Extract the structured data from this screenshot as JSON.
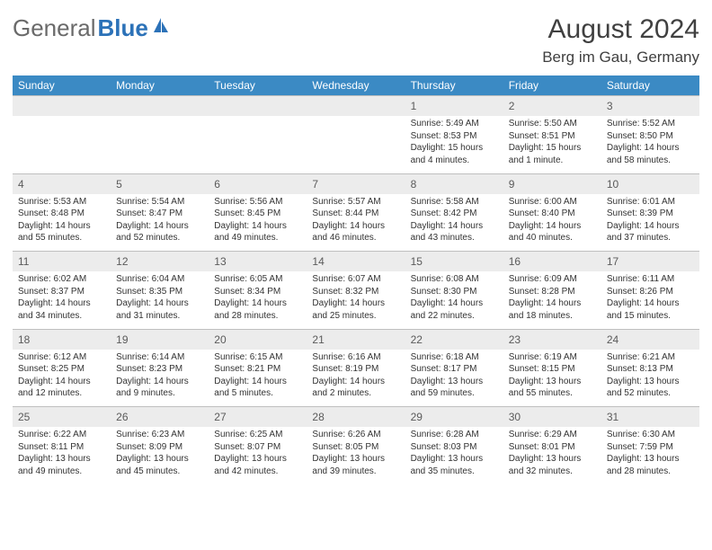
{
  "brand": {
    "part1": "General",
    "part2": "Blue"
  },
  "title": "August 2024",
  "location": "Berg im Gau, Germany",
  "colors": {
    "header_bg": "#3b8ac4",
    "header_fg": "#ffffff",
    "daynum_bg": "#ececec",
    "daynum_border": "#bfbfbf",
    "text": "#333333",
    "brand_gray": "#6a6a6a",
    "brand_blue": "#2c72b8"
  },
  "weekdays": [
    "Sunday",
    "Monday",
    "Tuesday",
    "Wednesday",
    "Thursday",
    "Friday",
    "Saturday"
  ],
  "weeks": [
    [
      {
        "n": "",
        "sun": "",
        "set": "",
        "day": ""
      },
      {
        "n": "",
        "sun": "",
        "set": "",
        "day": ""
      },
      {
        "n": "",
        "sun": "",
        "set": "",
        "day": ""
      },
      {
        "n": "",
        "sun": "",
        "set": "",
        "day": ""
      },
      {
        "n": "1",
        "sun": "Sunrise: 5:49 AM",
        "set": "Sunset: 8:53 PM",
        "day": "Daylight: 15 hours and 4 minutes."
      },
      {
        "n": "2",
        "sun": "Sunrise: 5:50 AM",
        "set": "Sunset: 8:51 PM",
        "day": "Daylight: 15 hours and 1 minute."
      },
      {
        "n": "3",
        "sun": "Sunrise: 5:52 AM",
        "set": "Sunset: 8:50 PM",
        "day": "Daylight: 14 hours and 58 minutes."
      }
    ],
    [
      {
        "n": "4",
        "sun": "Sunrise: 5:53 AM",
        "set": "Sunset: 8:48 PM",
        "day": "Daylight: 14 hours and 55 minutes."
      },
      {
        "n": "5",
        "sun": "Sunrise: 5:54 AM",
        "set": "Sunset: 8:47 PM",
        "day": "Daylight: 14 hours and 52 minutes."
      },
      {
        "n": "6",
        "sun": "Sunrise: 5:56 AM",
        "set": "Sunset: 8:45 PM",
        "day": "Daylight: 14 hours and 49 minutes."
      },
      {
        "n": "7",
        "sun": "Sunrise: 5:57 AM",
        "set": "Sunset: 8:44 PM",
        "day": "Daylight: 14 hours and 46 minutes."
      },
      {
        "n": "8",
        "sun": "Sunrise: 5:58 AM",
        "set": "Sunset: 8:42 PM",
        "day": "Daylight: 14 hours and 43 minutes."
      },
      {
        "n": "9",
        "sun": "Sunrise: 6:00 AM",
        "set": "Sunset: 8:40 PM",
        "day": "Daylight: 14 hours and 40 minutes."
      },
      {
        "n": "10",
        "sun": "Sunrise: 6:01 AM",
        "set": "Sunset: 8:39 PM",
        "day": "Daylight: 14 hours and 37 minutes."
      }
    ],
    [
      {
        "n": "11",
        "sun": "Sunrise: 6:02 AM",
        "set": "Sunset: 8:37 PM",
        "day": "Daylight: 14 hours and 34 minutes."
      },
      {
        "n": "12",
        "sun": "Sunrise: 6:04 AM",
        "set": "Sunset: 8:35 PM",
        "day": "Daylight: 14 hours and 31 minutes."
      },
      {
        "n": "13",
        "sun": "Sunrise: 6:05 AM",
        "set": "Sunset: 8:34 PM",
        "day": "Daylight: 14 hours and 28 minutes."
      },
      {
        "n": "14",
        "sun": "Sunrise: 6:07 AM",
        "set": "Sunset: 8:32 PM",
        "day": "Daylight: 14 hours and 25 minutes."
      },
      {
        "n": "15",
        "sun": "Sunrise: 6:08 AM",
        "set": "Sunset: 8:30 PM",
        "day": "Daylight: 14 hours and 22 minutes."
      },
      {
        "n": "16",
        "sun": "Sunrise: 6:09 AM",
        "set": "Sunset: 8:28 PM",
        "day": "Daylight: 14 hours and 18 minutes."
      },
      {
        "n": "17",
        "sun": "Sunrise: 6:11 AM",
        "set": "Sunset: 8:26 PM",
        "day": "Daylight: 14 hours and 15 minutes."
      }
    ],
    [
      {
        "n": "18",
        "sun": "Sunrise: 6:12 AM",
        "set": "Sunset: 8:25 PM",
        "day": "Daylight: 14 hours and 12 minutes."
      },
      {
        "n": "19",
        "sun": "Sunrise: 6:14 AM",
        "set": "Sunset: 8:23 PM",
        "day": "Daylight: 14 hours and 9 minutes."
      },
      {
        "n": "20",
        "sun": "Sunrise: 6:15 AM",
        "set": "Sunset: 8:21 PM",
        "day": "Daylight: 14 hours and 5 minutes."
      },
      {
        "n": "21",
        "sun": "Sunrise: 6:16 AM",
        "set": "Sunset: 8:19 PM",
        "day": "Daylight: 14 hours and 2 minutes."
      },
      {
        "n": "22",
        "sun": "Sunrise: 6:18 AM",
        "set": "Sunset: 8:17 PM",
        "day": "Daylight: 13 hours and 59 minutes."
      },
      {
        "n": "23",
        "sun": "Sunrise: 6:19 AM",
        "set": "Sunset: 8:15 PM",
        "day": "Daylight: 13 hours and 55 minutes."
      },
      {
        "n": "24",
        "sun": "Sunrise: 6:21 AM",
        "set": "Sunset: 8:13 PM",
        "day": "Daylight: 13 hours and 52 minutes."
      }
    ],
    [
      {
        "n": "25",
        "sun": "Sunrise: 6:22 AM",
        "set": "Sunset: 8:11 PM",
        "day": "Daylight: 13 hours and 49 minutes."
      },
      {
        "n": "26",
        "sun": "Sunrise: 6:23 AM",
        "set": "Sunset: 8:09 PM",
        "day": "Daylight: 13 hours and 45 minutes."
      },
      {
        "n": "27",
        "sun": "Sunrise: 6:25 AM",
        "set": "Sunset: 8:07 PM",
        "day": "Daylight: 13 hours and 42 minutes."
      },
      {
        "n": "28",
        "sun": "Sunrise: 6:26 AM",
        "set": "Sunset: 8:05 PM",
        "day": "Daylight: 13 hours and 39 minutes."
      },
      {
        "n": "29",
        "sun": "Sunrise: 6:28 AM",
        "set": "Sunset: 8:03 PM",
        "day": "Daylight: 13 hours and 35 minutes."
      },
      {
        "n": "30",
        "sun": "Sunrise: 6:29 AM",
        "set": "Sunset: 8:01 PM",
        "day": "Daylight: 13 hours and 32 minutes."
      },
      {
        "n": "31",
        "sun": "Sunrise: 6:30 AM",
        "set": "Sunset: 7:59 PM",
        "day": "Daylight: 13 hours and 28 minutes."
      }
    ]
  ]
}
